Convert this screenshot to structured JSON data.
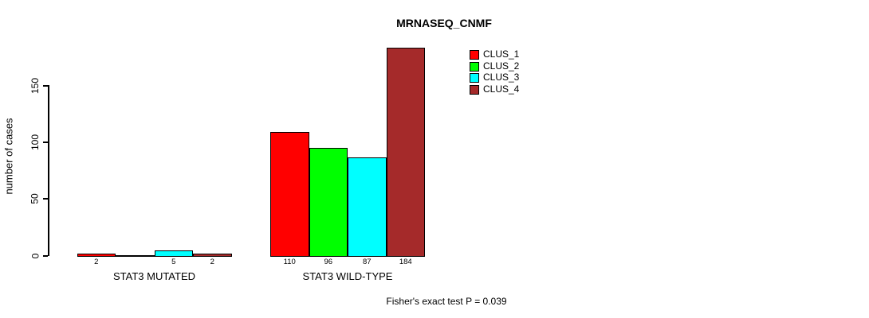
{
  "chart_data": {
    "type": "bar",
    "title": "MRNASEQ_CNMF",
    "ylabel": "number of cases",
    "annotation": "Fisher's exact test P = 0.039",
    "groups": [
      "STAT3 MUTATED",
      "STAT3 WILD-TYPE"
    ],
    "series": [
      {
        "name": "CLUS_1",
        "color": "#ff0000",
        "values": [
          2,
          110
        ]
      },
      {
        "name": "CLUS_2",
        "color": "#00ff00",
        "values": [
          0,
          96
        ]
      },
      {
        "name": "CLUS_3",
        "color": "#00ffff",
        "values": [
          5,
          87
        ]
      },
      {
        "name": "CLUS_4",
        "color": "#a52a2a",
        "values": [
          2,
          184
        ]
      }
    ],
    "value_labels": [
      [
        "2",
        "",
        "5",
        "2"
      ],
      [
        "110",
        "96",
        "87",
        "184"
      ]
    ],
    "yticks": [
      0,
      50,
      100,
      150
    ],
    "ylim": [
      0,
      184
    ],
    "grid": false,
    "legend_position": "top-right",
    "legend": [
      "CLUS_1",
      "CLUS_2",
      "CLUS_3",
      "CLUS_4"
    ]
  }
}
